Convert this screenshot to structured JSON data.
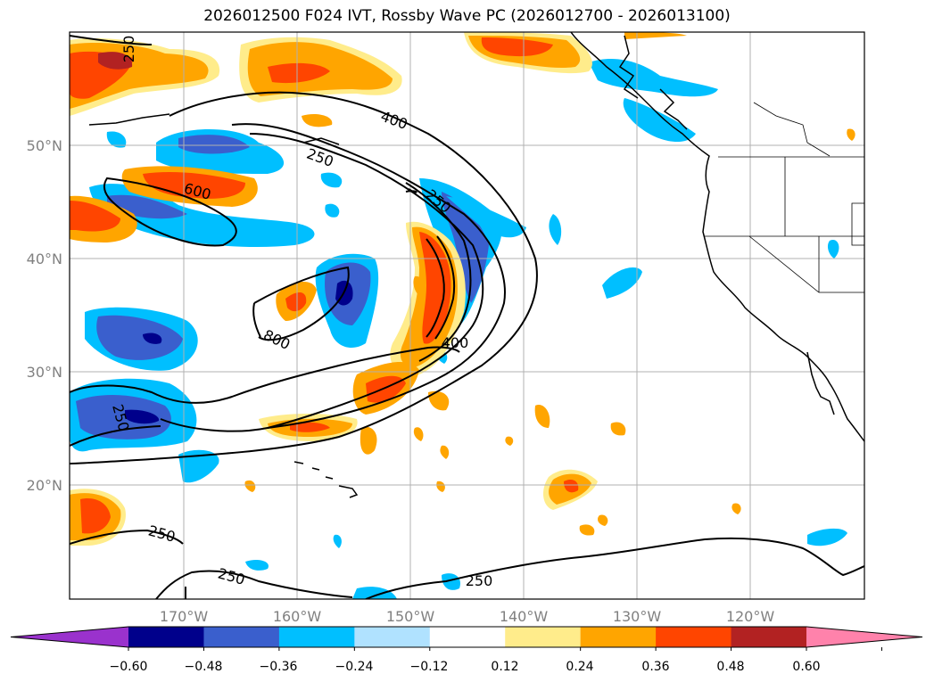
{
  "title": "2026012500 F024 IVT, Rossby Wave PC (2026012700 - 2026013100)",
  "map": {
    "lat_labels": [
      "50°N",
      "40°N",
      "30°N",
      "20°N"
    ],
    "lon_labels": [
      "170°W",
      "160°W",
      "150°W",
      "140°W",
      "130°W",
      "120°W"
    ],
    "contour_labels": [
      "250",
      "400",
      "250",
      "600",
      "250",
      "800",
      "400",
      "250",
      "250",
      "250",
      "250"
    ]
  },
  "colorbar": {
    "ticks": [
      "−0.60",
      "−0.48",
      "−0.36",
      "−0.24",
      "−0.12",
      "0.12",
      "0.24",
      "0.36",
      "0.48",
      "0.60"
    ],
    "colors": [
      "#9a32cd",
      "#00008b",
      "#3a5fcd",
      "#00bfff",
      "#b0e2ff",
      "#ffffff",
      "#ffec8b",
      "#ffa500",
      "#ff4500",
      "#b22222",
      "#ff82ab"
    ],
    "extend": "both"
  },
  "colors": {
    "neg_strong": "#00008b",
    "neg_mid": "#3a5fcd",
    "neg_low": "#00bfff",
    "neg_faint": "#b0e2ff",
    "pos_faint": "#ffec8b",
    "pos_low": "#ffa500",
    "pos_mid": "#ff4500",
    "pos_strong": "#b22222",
    "gridline": "#b0b0b0"
  }
}
